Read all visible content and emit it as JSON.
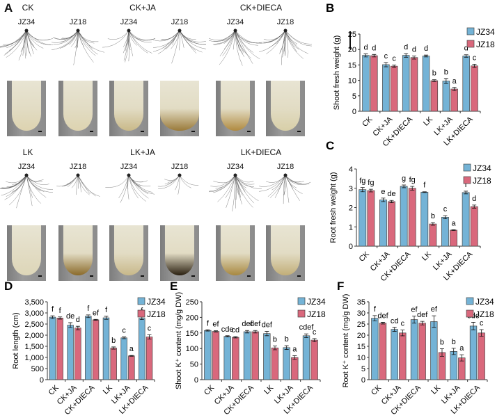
{
  "panel_labels": [
    "A",
    "B",
    "C",
    "D",
    "E",
    "F"
  ],
  "panelA": {
    "treatments_top": [
      "CK",
      "CK+JA",
      "CK+DIECA"
    ],
    "treatments_bottom": [
      "LK",
      "LK+JA",
      "LK+DIECA"
    ],
    "genotypes": [
      "JZ34",
      "JZ18"
    ]
  },
  "colors": {
    "JZ34": "#74b3d6",
    "JZ18": "#d9687c",
    "axis": "#333333"
  },
  "chart_data": [
    {
      "panel": "B",
      "type": "bar",
      "categories": [
        "CK",
        "CK+JA",
        "CK+DIECA",
        "LK",
        "LK+JA",
        "LK+DIECA"
      ],
      "ylabel": "Shoot fresh weight (g)",
      "ylim": [
        0,
        25
      ],
      "yticks": [
        "0",
        "5",
        "10",
        "15",
        "20",
        "25"
      ],
      "legend": "top-right",
      "series": [
        {
          "name": "JZ34",
          "values": [
            18.1,
            15.1,
            18.1,
            17.9,
            9.8,
            17.9
          ],
          "errors": [
            0.5,
            0.7,
            0.6,
            0.3,
            0.8,
            0.4
          ],
          "letters": [
            "d",
            "c",
            "d",
            "d",
            "b",
            "d"
          ]
        },
        {
          "name": "JZ18",
          "values": [
            18.0,
            14.6,
            17.4,
            9.9,
            7.2,
            14.7
          ],
          "errors": [
            0.4,
            0.4,
            0.5,
            0.3,
            0.5,
            0.5
          ],
          "letters": [
            "d",
            "c",
            "d",
            "b",
            "a",
            "c"
          ]
        }
      ]
    },
    {
      "panel": "C",
      "type": "bar",
      "categories": [
        "CK",
        "CK+JA",
        "CK+DIECA",
        "LK",
        "LK+JA",
        "LK+DIECA"
      ],
      "ylabel": "Root fresh weight (g)",
      "ylim": [
        0,
        4
      ],
      "yticks": [
        "0",
        "1",
        "2",
        "3",
        "4"
      ],
      "legend": "top-right",
      "series": [
        {
          "name": "JZ34",
          "values": [
            2.93,
            2.4,
            3.1,
            2.8,
            1.5,
            2.78
          ],
          "errors": [
            0.11,
            0.09,
            0.07,
            0.02,
            0.08,
            0.07
          ],
          "letters": [
            "fg",
            "e",
            "g",
            "f",
            "c",
            "f"
          ]
        },
        {
          "name": "JZ18",
          "values": [
            2.88,
            2.31,
            3.0,
            1.15,
            0.83,
            2.05
          ],
          "errors": [
            0.07,
            0.06,
            0.1,
            0.07,
            0.02,
            0.08
          ],
          "letters": [
            "fg",
            "de",
            "fg",
            "b",
            "a",
            "d"
          ]
        }
      ]
    },
    {
      "panel": "D",
      "type": "bar",
      "categories": [
        "CK",
        "CK+JA",
        "CK+DIECA",
        "LK",
        "LK+JA",
        "LK+DIECA"
      ],
      "ylabel": "Root length (cm)",
      "ylim": [
        0,
        3500
      ],
      "yticks": [
        "0",
        "500",
        "1,000",
        "1,500",
        "2,000",
        "2,500",
        "3,000",
        "3,500"
      ],
      "legend": "top-right",
      "series": [
        {
          "name": "JZ34",
          "values": [
            2810,
            2450,
            2850,
            2780,
            1880,
            2760
          ],
          "errors": [
            60,
            110,
            60,
            70,
            40,
            60
          ],
          "letters": [
            "f",
            "de",
            "f",
            "f",
            "c",
            "f"
          ]
        },
        {
          "name": "JZ18",
          "values": [
            2770,
            2320,
            2690,
            1420,
            1070,
            1920
          ],
          "errors": [
            50,
            80,
            20,
            50,
            20,
            100
          ],
          "letters": [
            "f",
            "d",
            "ef",
            "b",
            "a",
            "c"
          ]
        }
      ]
    },
    {
      "panel": "E",
      "type": "bar",
      "categories": [
        "CK",
        "CK+JA",
        "CK+DIECA",
        "LK",
        "LK+JA",
        "LK+DIECA"
      ],
      "ylabel": "Shoot K⁺ content (mg/g DW)",
      "ylim": [
        0,
        250
      ],
      "yticks": [
        "0",
        "50",
        "100",
        "150",
        "200",
        "250"
      ],
      "legend": "top-right",
      "series": [
        {
          "name": "JZ34",
          "values": [
            158,
            139,
            154,
            148,
            103,
            141
          ],
          "errors": [
            2,
            2,
            4,
            7,
            6,
            6
          ],
          "letters": [
            "f",
            "cde",
            "def",
            "def",
            "b",
            "cdef"
          ]
        },
        {
          "name": "JZ18",
          "values": [
            155,
            136,
            154,
            102,
            71,
            127
          ],
          "errors": [
            2,
            2,
            4,
            6,
            6,
            5
          ],
          "letters": [
            "ef",
            "cd",
            "def",
            "b",
            "a",
            "c"
          ]
        }
      ]
    },
    {
      "panel": "F",
      "type": "bar",
      "categories": [
        "CK",
        "CK+JA",
        "CK+DIECA",
        "LK",
        "LK+JA",
        "LK+DIECA"
      ],
      "ylabel": "Root K⁺ content (mg/g DW)",
      "ylim": [
        0,
        35
      ],
      "yticks": [
        "0",
        "5",
        "10",
        "15",
        "20",
        "25",
        "30",
        "35"
      ],
      "legend": "top-right",
      "series": [
        {
          "name": "JZ34",
          "values": [
            27.6,
            22.6,
            27.0,
            26.1,
            12.7,
            24.1
          ],
          "errors": [
            1.2,
            0.9,
            1.6,
            2.6,
            1.4,
            1.7
          ],
          "letters": [
            "f",
            "cd",
            "ef",
            "ef",
            "b",
            "cde"
          ]
        },
        {
          "name": "JZ18",
          "values": [
            25.4,
            21.0,
            25.4,
            12.2,
            9.8,
            21.0
          ],
          "errors": [
            0.4,
            1.3,
            0.8,
            1.7,
            1.4,
            1.5
          ],
          "letters": [
            "def",
            "c",
            "def",
            "b",
            "a",
            "c"
          ]
        }
      ]
    }
  ]
}
